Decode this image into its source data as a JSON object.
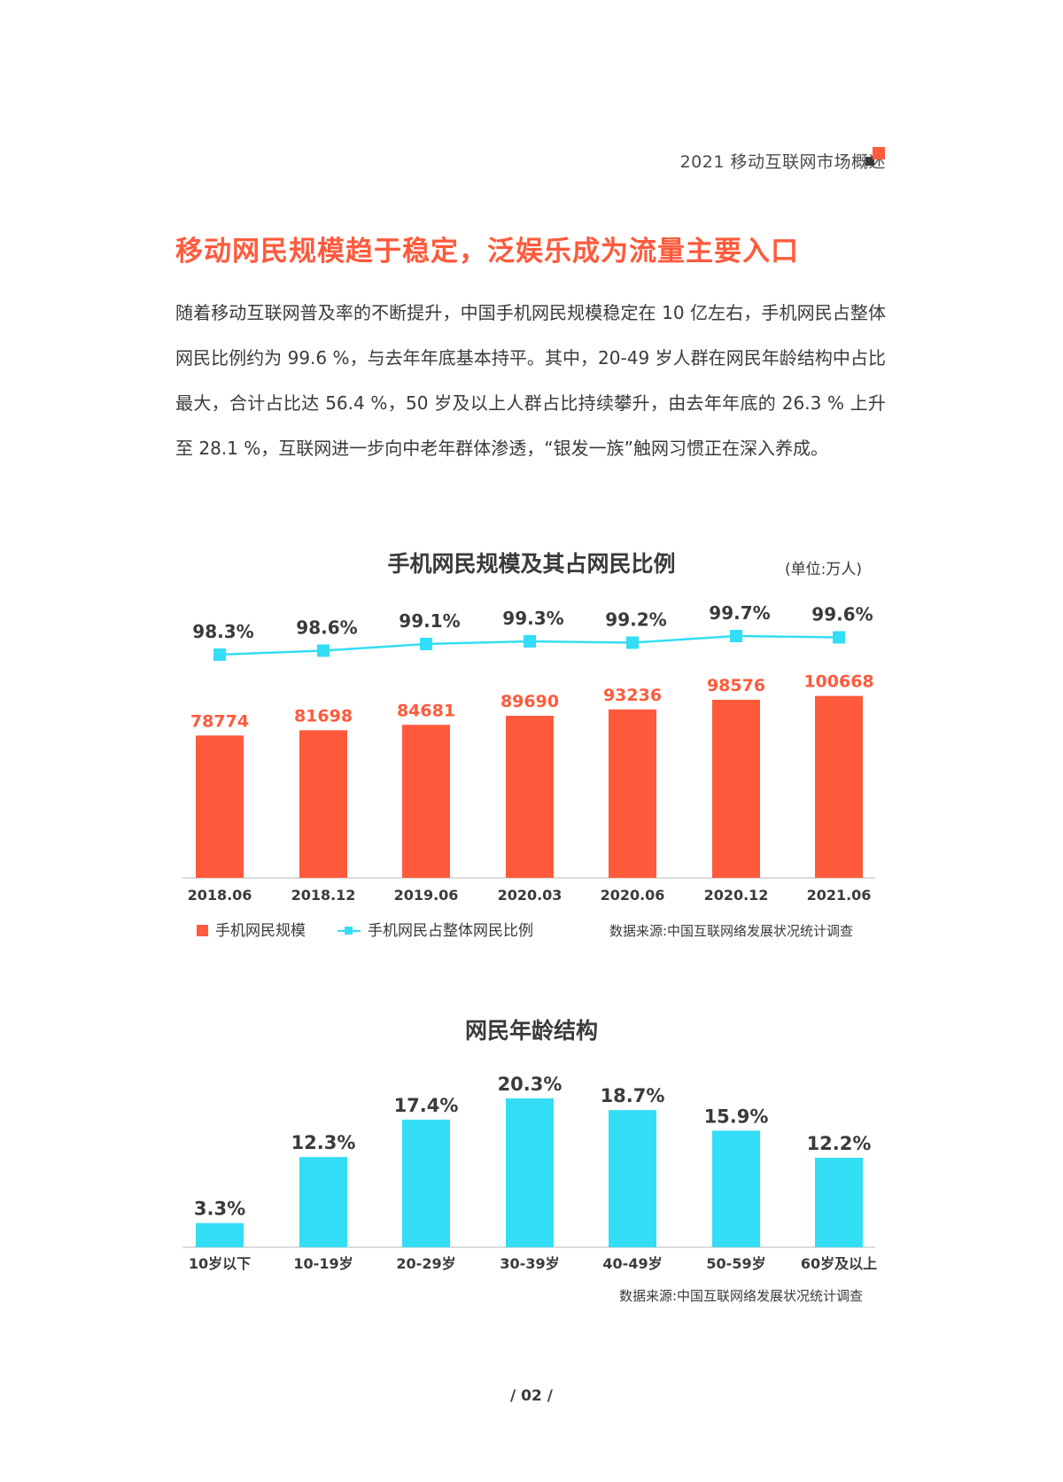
{
  "header": {
    "title": "2021 移动互联网市场概述"
  },
  "section_title": "移动网民规模趋于稳定，泛娱乐成为流量主要入口",
  "paragraph": "随着移动互联网普及率的不断提升，中国手机网民规模稳定在 10 亿左右，手机网民占整体网民比例约为 99.6 %，与去年年底基本持平。其中，20-49 岁人群在网民年龄结构中占比最大，合计占比达 56.4 %，50 岁及以上人群占比持续攀升，由去年年底的 26.3 % 上升至 28.1 %，互联网进一步向中老年群体渗透，“银发一族”触网习惯正在深入养成。",
  "chart1_title": "手机网民规模及其占网民比例",
  "chart1_unit": "(单位:万人)",
  "chart1_source": "数据来源:中国互联网络发展状况统计调查",
  "chart2_title": "网民年龄结构",
  "chart2_source": "数据来源:中国互联网络发展状况统计调查",
  "legend": {
    "bar_label": "手机网民规模",
    "line_label": "手机网民占整体网民比例"
  },
  "page_number": "/ 02 /",
  "colors": {
    "accent": "#ff5a3c",
    "line": "#33ddf5",
    "text": "#3a3a3a"
  },
  "chart_data": [
    {
      "type": "bar",
      "title": "手机网民规模及其占网民比例",
      "categories": [
        "2018.06",
        "2018.12",
        "2019.06",
        "2020.03",
        "2020.06",
        "2020.12",
        "2021.06"
      ],
      "series": [
        {
          "name": "手机网民规模",
          "type": "bar",
          "values": [
            78774,
            81698,
            84681,
            89690,
            93236,
            98576,
            100668
          ],
          "labels": [
            "78774",
            "81698",
            "84681",
            "89690",
            "93236",
            "98576",
            "100668"
          ]
        },
        {
          "name": "手机网民占整体网民比例",
          "type": "line",
          "values": [
            98.3,
            98.6,
            99.1,
            99.3,
            99.2,
            99.7,
            99.6
          ],
          "labels": [
            "98.3%",
            "98.6%",
            "99.1%",
            "99.3%",
            "99.2%",
            "99.7%",
            "99.6%"
          ]
        }
      ],
      "legend_position": "bottom-left",
      "grid": false
    },
    {
      "type": "bar",
      "title": "网民年龄结构",
      "categories": [
        "10岁以下",
        "10-19岁",
        "20-29岁",
        "30-39岁",
        "40-49岁",
        "50-59岁",
        "60岁及以上"
      ],
      "values": [
        3.3,
        12.3,
        17.4,
        20.3,
        18.7,
        15.9,
        12.2
      ],
      "labels": [
        "3.3%",
        "12.3%",
        "17.4%",
        "20.3%",
        "18.7%",
        "15.9%",
        "12.2%"
      ],
      "grid": false
    }
  ]
}
